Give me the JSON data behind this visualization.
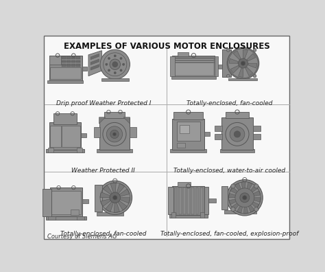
{
  "title": "EXAMPLES OF VARIOUS MOTOR ENCLOSURES",
  "bg_color": "#f0f0f0",
  "border_color": "#888888",
  "motor_fill": "#8a8a8a",
  "motor_dark": "#555555",
  "motor_light": "#b0b0b0",
  "enclosures": [
    {
      "label": "Drip proof Weather Protected I",
      "row": 0,
      "col": 0
    },
    {
      "label": "Totally-enclosed, fan-cooled",
      "row": 0,
      "col": 1
    },
    {
      "label": "Weather Protected II",
      "row": 1,
      "col": 0
    },
    {
      "label": "Totally-enclosed, water-to-air cooled",
      "row": 1,
      "col": 1
    },
    {
      "label": "Totally-enclosed, fan-cooled",
      "row": 2,
      "col": 0
    },
    {
      "label": "Totally-enclosed, fan-cooled, explosion-proof",
      "row": 2,
      "col": 1
    }
  ],
  "courtesy": "Courtesy of Siemens AG",
  "title_fontsize": 8.5,
  "label_fontsize": 6.5,
  "courtesy_fontsize": 6.0,
  "outer_bg": "#d8d8d8"
}
